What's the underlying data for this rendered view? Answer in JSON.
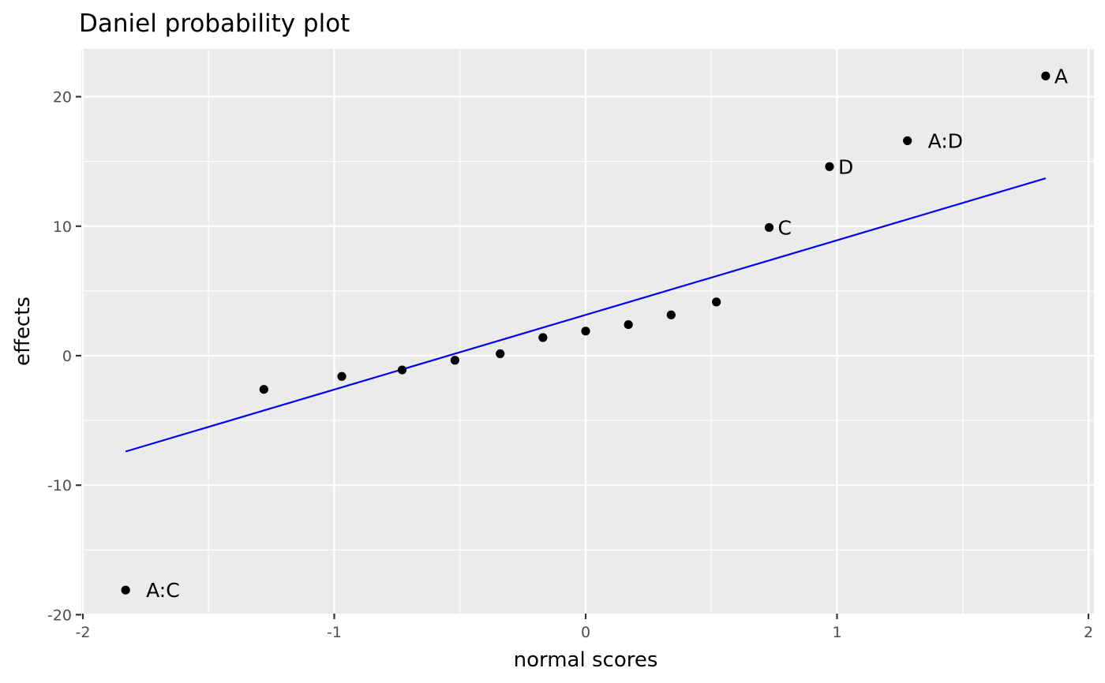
{
  "chart_data": {
    "type": "scatter",
    "title": "Daniel probability plot",
    "xlabel": "normal scores",
    "ylabel": "effects",
    "xlim": [
      -2,
      2
    ],
    "ylim": [
      -20,
      23
    ],
    "x_ticks": [
      {
        "value": -2,
        "label": "-2"
      },
      {
        "value": -1,
        "label": "-1"
      },
      {
        "value": 0,
        "label": "0"
      },
      {
        "value": 1,
        "label": "1"
      },
      {
        "value": 2,
        "label": "2"
      }
    ],
    "y_ticks": [
      {
        "value": -20,
        "label": "-20"
      },
      {
        "value": -10,
        "label": "-10"
      },
      {
        "value": 0,
        "label": "0"
      },
      {
        "value": 10,
        "label": "10"
      },
      {
        "value": 20,
        "label": "20"
      }
    ],
    "grid": true,
    "background_color": "#ebebeb",
    "point_color": "#000000",
    "line_color": "#0000ee",
    "points": [
      {
        "x": -1.83,
        "y": -18.1,
        "label": "A:C"
      },
      {
        "x": -1.28,
        "y": -2.6,
        "label": ""
      },
      {
        "x": -0.97,
        "y": -1.6,
        "label": ""
      },
      {
        "x": -0.73,
        "y": -1.1,
        "label": ""
      },
      {
        "x": -0.52,
        "y": -0.35,
        "label": ""
      },
      {
        "x": -0.34,
        "y": 0.15,
        "label": ""
      },
      {
        "x": -0.17,
        "y": 1.4,
        "label": ""
      },
      {
        "x": 0.0,
        "y": 1.9,
        "label": ""
      },
      {
        "x": 0.17,
        "y": 2.4,
        "label": ""
      },
      {
        "x": 0.34,
        "y": 3.15,
        "label": ""
      },
      {
        "x": 0.52,
        "y": 4.15,
        "label": ""
      },
      {
        "x": 0.73,
        "y": 9.9,
        "label": "C"
      },
      {
        "x": 0.97,
        "y": 14.6,
        "label": "D"
      },
      {
        "x": 1.28,
        "y": 16.6,
        "label": "A:D"
      },
      {
        "x": 1.83,
        "y": 21.6,
        "label": "A"
      }
    ],
    "reference_line": {
      "x": [
        -1.83,
        1.83
      ],
      "y": [
        -7.4,
        13.7
      ]
    }
  }
}
